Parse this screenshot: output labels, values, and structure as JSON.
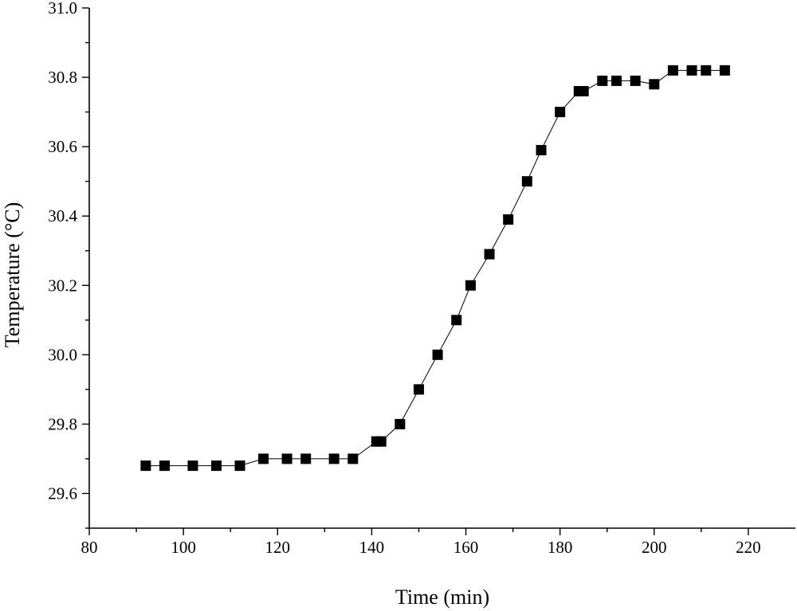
{
  "chart_data": {
    "type": "line",
    "title": "",
    "xlabel": "Time (min)",
    "ylabel": "Temperature (°C)",
    "xlim": [
      80,
      230
    ],
    "ylim": [
      29.5,
      31.0
    ],
    "xticks": [
      80,
      100,
      120,
      140,
      160,
      180,
      200,
      220
    ],
    "yticks": [
      29.6,
      29.8,
      30.0,
      30.2,
      30.4,
      30.6,
      30.8,
      31.0
    ],
    "xtick_labels": [
      "80",
      "100",
      "120",
      "140",
      "160",
      "180",
      "200",
      "220"
    ],
    "ytick_labels": [
      "29.6",
      "29.8",
      "30.0",
      "30.2",
      "30.4",
      "30.6",
      "30.8",
      "31.0"
    ],
    "grid": false,
    "marker": "square",
    "color": "#000000",
    "series": [
      {
        "x": [
          92,
          96,
          102,
          107,
          112,
          117,
          122,
          126,
          132,
          136,
          141,
          142,
          146,
          150,
          154,
          158,
          161,
          165,
          169,
          173,
          176,
          180,
          184,
          185,
          189,
          192,
          196,
          200,
          204,
          208,
          211,
          215
        ],
        "y": [
          29.68,
          29.68,
          29.68,
          29.68,
          29.68,
          29.7,
          29.7,
          29.7,
          29.7,
          29.7,
          29.75,
          29.75,
          29.8,
          29.9,
          30.0,
          30.1,
          30.2,
          30.29,
          30.39,
          30.5,
          30.59,
          30.7,
          30.76,
          30.76,
          30.79,
          30.79,
          30.79,
          30.78,
          30.82,
          30.82,
          30.82,
          30.82
        ]
      }
    ]
  }
}
